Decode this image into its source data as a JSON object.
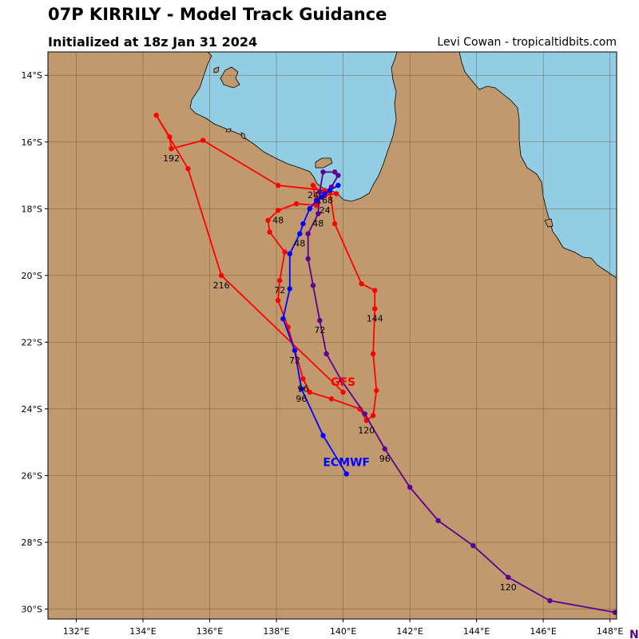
{
  "header": {
    "title": "07P KIRRILY - Model Track Guidance",
    "subtitle": "Initialized at 18z Jan 31 2024",
    "credit": "Levi Cowan - tropicaltidbits.com"
  },
  "colors": {
    "land": "#c09a6e",
    "water": "#92cde3",
    "grid": "#6b4a2b",
    "gfs": "#ff0000",
    "ecmwf": "#0000ff",
    "third": "#5c0090"
  },
  "map": {
    "lon_range": [
      131.15,
      148.2
    ],
    "lat_range": [
      -30.3,
      -13.3
    ],
    "lon_ticks": [
      "132°E",
      "134°E",
      "136°E",
      "138°E",
      "140°E",
      "142°E",
      "144°E",
      "146°E",
      "148°E"
    ],
    "lat_ticks": [
      "14°S",
      "16°S",
      "18°S",
      "20°S",
      "22°S",
      "24°S",
      "26°S",
      "28°S",
      "30°S"
    ]
  },
  "chart_data": {
    "type": "scatter",
    "title": "07P KIRRILY - Model Track Guidance",
    "series": [
      {
        "name": "GFS",
        "color": "#ff0000",
        "points": [
          [
            139.8,
            -17.55
          ],
          [
            139.45,
            -17.6
          ],
          [
            139.1,
            -17.3
          ],
          [
            139.2,
            -17.9
          ],
          [
            138.6,
            -17.85
          ],
          [
            138.05,
            -18.05
          ],
          [
            137.75,
            -18.35
          ],
          [
            137.8,
            -18.7
          ],
          [
            138.25,
            -19.3
          ],
          [
            138.1,
            -20.15
          ],
          [
            138.05,
            -20.75
          ],
          [
            138.35,
            -21.55
          ],
          [
            138.8,
            -23.1
          ],
          [
            139.0,
            -23.5
          ],
          [
            139.65,
            -23.7
          ],
          [
            140.5,
            -24.0
          ],
          [
            140.7,
            -24.35
          ],
          [
            140.9,
            -24.2
          ],
          [
            141.0,
            -23.45
          ],
          [
            140.9,
            -22.35
          ],
          [
            140.95,
            -21.0
          ],
          [
            140.95,
            -20.45
          ],
          [
            140.55,
            -20.25
          ],
          [
            139.75,
            -18.45
          ],
          [
            139.6,
            -17.5
          ],
          [
            139.45,
            -17.45
          ],
          [
            138.05,
            -17.3
          ],
          [
            135.8,
            -15.95
          ],
          [
            134.85,
            -16.2
          ],
          [
            134.8,
            -15.85
          ],
          [
            134.4,
            -15.2
          ],
          [
            135.35,
            -16.8
          ],
          [
            136.35,
            -20.0
          ],
          [
            140.0,
            -23.5
          ]
        ],
        "labels": [
          {
            "text": "24",
            "x": 139.1,
            "y": -17.3
          },
          {
            "text": "48",
            "x": 138.05,
            "y": -18.05
          },
          {
            "text": "72",
            "x": 138.1,
            "y": -20.15
          },
          {
            "text": "96",
            "x": 138.8,
            "y": -23.1
          },
          {
            "text": "120",
            "x": 140.7,
            "y": -24.35
          },
          {
            "text": "144",
            "x": 140.95,
            "y": -21.0
          },
          {
            "text": "168",
            "x": 139.45,
            "y": -17.45
          },
          {
            "text": "192",
            "x": 134.85,
            "y": -16.2
          },
          {
            "text": "216",
            "x": 136.35,
            "y": -20.0
          }
        ],
        "end_label": {
          "text": "GFS",
          "x": 140.0,
          "y": -23.5
        }
      },
      {
        "name": "ECMWF",
        "color": "#0000ff",
        "points": [
          [
            139.85,
            -17.3
          ],
          [
            139.6,
            -17.45
          ],
          [
            139.45,
            -17.55
          ],
          [
            139.35,
            -17.65
          ],
          [
            139.2,
            -17.75
          ],
          [
            139.0,
            -18.0
          ],
          [
            138.8,
            -18.45
          ],
          [
            138.7,
            -18.75
          ],
          [
            138.4,
            -19.35
          ],
          [
            138.4,
            -20.4
          ],
          [
            138.2,
            -21.3
          ],
          [
            138.55,
            -22.25
          ],
          [
            138.75,
            -23.4
          ],
          [
            139.4,
            -24.8
          ],
          [
            140.1,
            -25.95
          ]
        ],
        "labels": [
          {
            "text": "24",
            "x": 139.45,
            "y": -17.75
          },
          {
            "text": "48",
            "x": 138.7,
            "y": -18.75
          },
          {
            "text": "72",
            "x": 138.55,
            "y": -22.25
          },
          {
            "text": "96",
            "x": 138.75,
            "y": -23.4
          }
        ],
        "end_label": {
          "text": "ECMWF",
          "x": 140.1,
          "y": -25.95
        }
      },
      {
        "name": "",
        "color": "#5c0090",
        "points": [
          [
            139.65,
            -17.35
          ],
          [
            139.85,
            -17.0
          ],
          [
            139.75,
            -16.9
          ],
          [
            139.4,
            -16.9
          ],
          [
            139.3,
            -17.5
          ],
          [
            139.25,
            -18.15
          ],
          [
            138.95,
            -18.75
          ],
          [
            138.95,
            -19.5
          ],
          [
            139.1,
            -20.3
          ],
          [
            139.3,
            -21.35
          ],
          [
            139.5,
            -22.35
          ],
          [
            139.95,
            -23.15
          ],
          [
            140.65,
            -24.15
          ],
          [
            141.25,
            -25.2
          ],
          [
            142.0,
            -26.35
          ],
          [
            142.85,
            -27.35
          ],
          [
            143.9,
            -28.1
          ],
          [
            144.95,
            -29.05
          ],
          [
            146.2,
            -29.75
          ],
          [
            148.15,
            -30.1
          ],
          [
            148.5,
            -30.2
          ]
        ],
        "labels": [
          {
            "text": "48",
            "x": 139.25,
            "y": -18.15
          },
          {
            "text": "72",
            "x": 139.3,
            "y": -21.35
          },
          {
            "text": "96",
            "x": 141.25,
            "y": -25.2
          },
          {
            "text": "120",
            "x": 144.95,
            "y": -29.05
          }
        ],
        "end_label": {
          "text": "N",
          "x": 148.5,
          "y": -30.2
        }
      }
    ]
  }
}
